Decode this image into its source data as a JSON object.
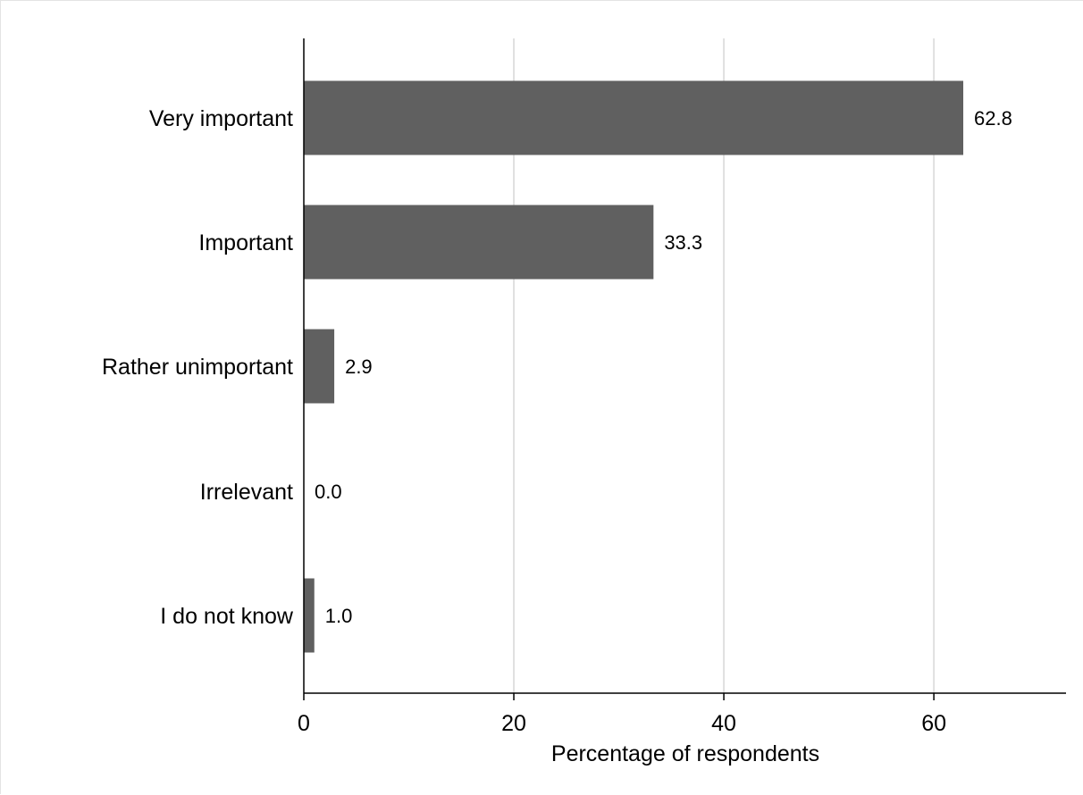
{
  "chart_data": {
    "type": "bar",
    "orientation": "horizontal",
    "categories": [
      "Very important",
      "Important",
      "Rather unimportant",
      "Irrelevant",
      "I do not know"
    ],
    "values": [
      62.8,
      33.3,
      2.9,
      0.0,
      1.0
    ],
    "value_labels": [
      "62.8",
      "33.3",
      "2.9",
      "0.0",
      "1.0"
    ],
    "xlabel": "Percentage of respondents",
    "ylabel": "",
    "xlim": [
      0,
      72
    ],
    "xticks": [
      0,
      20,
      40,
      60
    ],
    "xtick_labels": [
      "0",
      "20",
      "40",
      "60"
    ],
    "grid": "vertical",
    "bar_color": "#606060",
    "grid_color": "#e0e0e0"
  }
}
